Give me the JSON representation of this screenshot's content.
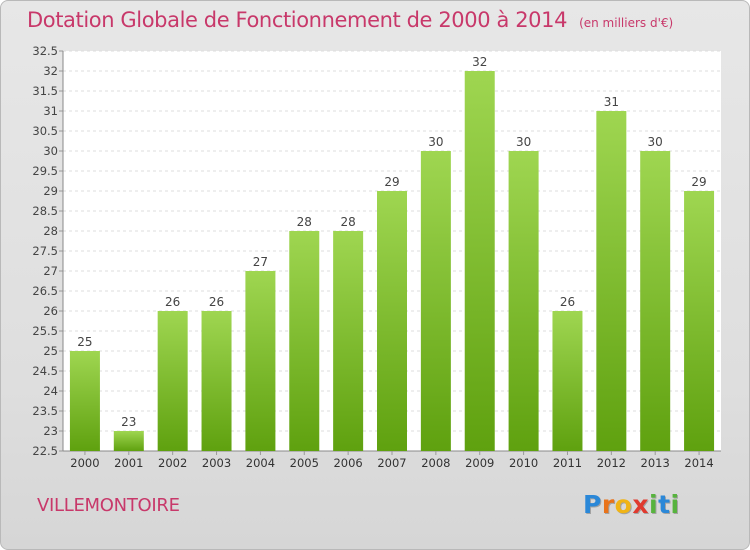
{
  "chart_data": {
    "type": "bar",
    "title": "Dotation Globale de Fonctionnement de 2000 à 2014",
    "subtitle": "(en milliers d'€)",
    "categories": [
      "2000",
      "2001",
      "2002",
      "2003",
      "2004",
      "2005",
      "2006",
      "2007",
      "2008",
      "2009",
      "2010",
      "2011",
      "2012",
      "2013",
      "2014"
    ],
    "values": [
      25,
      23,
      26,
      26,
      27,
      28,
      28,
      29,
      30,
      32,
      30,
      26,
      31,
      30,
      29
    ],
    "ylim": [
      22.5,
      32.5
    ],
    "yticks": [
      "22.5",
      "23",
      "23.5",
      "24",
      "24.5",
      "25",
      "25.5",
      "26",
      "26.5",
      "27",
      "27.5",
      "28",
      "28.5",
      "29",
      "29.5",
      "30",
      "30.5",
      "31",
      "31.5",
      "32",
      "32.5"
    ],
    "grid": true,
    "bar_color_top": "#9fd651",
    "bar_color_bottom": "#5fa10f"
  },
  "place_name": "VILLEMONTOIRE",
  "logo": {
    "letters": [
      {
        "char": "P",
        "color": "#2b88d8"
      },
      {
        "char": "r",
        "color": "#e8731b"
      },
      {
        "char": "o",
        "color": "#f0b416"
      },
      {
        "char": "x",
        "color": "#e03a2e"
      },
      {
        "char": "i",
        "color": "#57b33e"
      },
      {
        "char": "t",
        "color": "#2b88d8"
      },
      {
        "char": "i",
        "color": "#57b33e"
      }
    ]
  }
}
